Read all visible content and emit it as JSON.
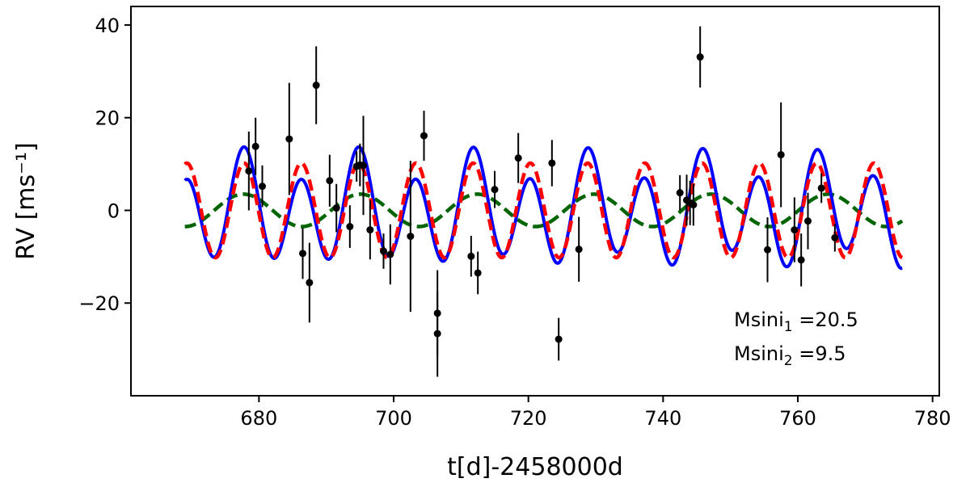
{
  "chart_data": {
    "type": "scatter",
    "xlabel": "t[d]-2458000d",
    "ylabel": "RV [ms⁻¹]",
    "xlim": [
      661,
      781
    ],
    "ylim": [
      -40,
      44
    ],
    "xticks": [
      680,
      700,
      720,
      740,
      760,
      780
    ],
    "yticks": [
      -20,
      0,
      20,
      40
    ],
    "ytick_labels": [
      "−20",
      "0",
      "20",
      "40"
    ],
    "grid": false,
    "annotations": [
      {
        "base": "Msini",
        "sub": "1",
        "text": " =20.5"
      },
      {
        "base": "Msini",
        "sub": "2",
        "text": " =9.5"
      }
    ],
    "data_points": [
      {
        "x": 678.5,
        "y": 8.5,
        "err": 8.5
      },
      {
        "x": 679.5,
        "y": 13.8,
        "err": 6.2
      },
      {
        "x": 680.5,
        "y": 5.2,
        "err": 4.5
      },
      {
        "x": 684.5,
        "y": 15.4,
        "err": 12.1
      },
      {
        "x": 686.5,
        "y": -9.3,
        "err": 5.5
      },
      {
        "x": 687.5,
        "y": -15.6,
        "err": 8.6
      },
      {
        "x": 688.5,
        "y": 27.0,
        "err": 8.4
      },
      {
        "x": 690.5,
        "y": 6.4,
        "err": 5.6
      },
      {
        "x": 691.5,
        "y": 0.5,
        "err": 5.2
      },
      {
        "x": 693.5,
        "y": -3.5,
        "err": 4.6
      },
      {
        "x": 694.5,
        "y": 9.5,
        "err": 3.3
      },
      {
        "x": 695.0,
        "y": 9.8,
        "err": 4.6
      },
      {
        "x": 695.5,
        "y": 9.7,
        "err": 10.7
      },
      {
        "x": 696.5,
        "y": -4.2,
        "err": 6.4
      },
      {
        "x": 698.5,
        "y": -8.8,
        "err": 3.8
      },
      {
        "x": 699.5,
        "y": -9.5,
        "err": 6.5
      },
      {
        "x": 702.5,
        "y": -5.6,
        "err": 16.3
      },
      {
        "x": 704.5,
        "y": 16.1,
        "err": 5.4
      },
      {
        "x": 706.5,
        "y": -22.2,
        "err": 9.3
      },
      {
        "x": 706.5,
        "y": -26.6,
        "err": 9.3
      },
      {
        "x": 711.5,
        "y": -9.9,
        "err": 4.4
      },
      {
        "x": 712.5,
        "y": -13.5,
        "err": 4.6
      },
      {
        "x": 715.0,
        "y": 4.5,
        "err": 4.0
      },
      {
        "x": 718.5,
        "y": 11.3,
        "err": 5.4
      },
      {
        "x": 723.5,
        "y": 10.2,
        "err": 5.0
      },
      {
        "x": 724.5,
        "y": -27.8,
        "err": 4.6
      },
      {
        "x": 727.5,
        "y": -8.4,
        "err": 7.0
      },
      {
        "x": 742.5,
        "y": 3.8,
        "err": 3.8
      },
      {
        "x": 743.5,
        "y": 2.2,
        "err": 5.5
      },
      {
        "x": 744.0,
        "y": 1.6,
        "err": 4.8
      },
      {
        "x": 744.5,
        "y": 1.2,
        "err": 4.5
      },
      {
        "x": 745.5,
        "y": 33.1,
        "err": 6.6
      },
      {
        "x": 755.5,
        "y": -8.5,
        "err": 7.0
      },
      {
        "x": 757.5,
        "y": 12.0,
        "err": 11.3
      },
      {
        "x": 759.5,
        "y": -4.2,
        "err": 7.0
      },
      {
        "x": 760.5,
        "y": -10.7,
        "err": 5.7
      },
      {
        "x": 761.5,
        "y": -2.3,
        "err": 6.1
      },
      {
        "x": 763.5,
        "y": 4.8,
        "err": 3.2
      },
      {
        "x": 765.5,
        "y": -5.9,
        "err": 3.0
      }
    ],
    "models": [
      {
        "color": "#0000ff",
        "style": "solid",
        "x_range": [
          669,
          775.5
        ],
        "components": [
          {
            "amp": 10.2,
            "period": 8.5,
            "phase_t0": 669.3
          },
          {
            "amp": 3.5,
            "period": 17.35,
            "phase_t0": 677.7
          }
        ]
      },
      {
        "color": "#ff0000",
        "style": "dashed",
        "x_range": [
          669,
          775.5
        ],
        "components": [
          {
            "amp": 10.2,
            "period": 8.5,
            "phase_t0": 669.3
          }
        ]
      },
      {
        "color": "#006400",
        "style": "dashed",
        "x_range": [
          669,
          775.5
        ],
        "components": [
          {
            "amp": 3.5,
            "period": 17.35,
            "phase_t0": 677.7
          }
        ]
      }
    ]
  }
}
